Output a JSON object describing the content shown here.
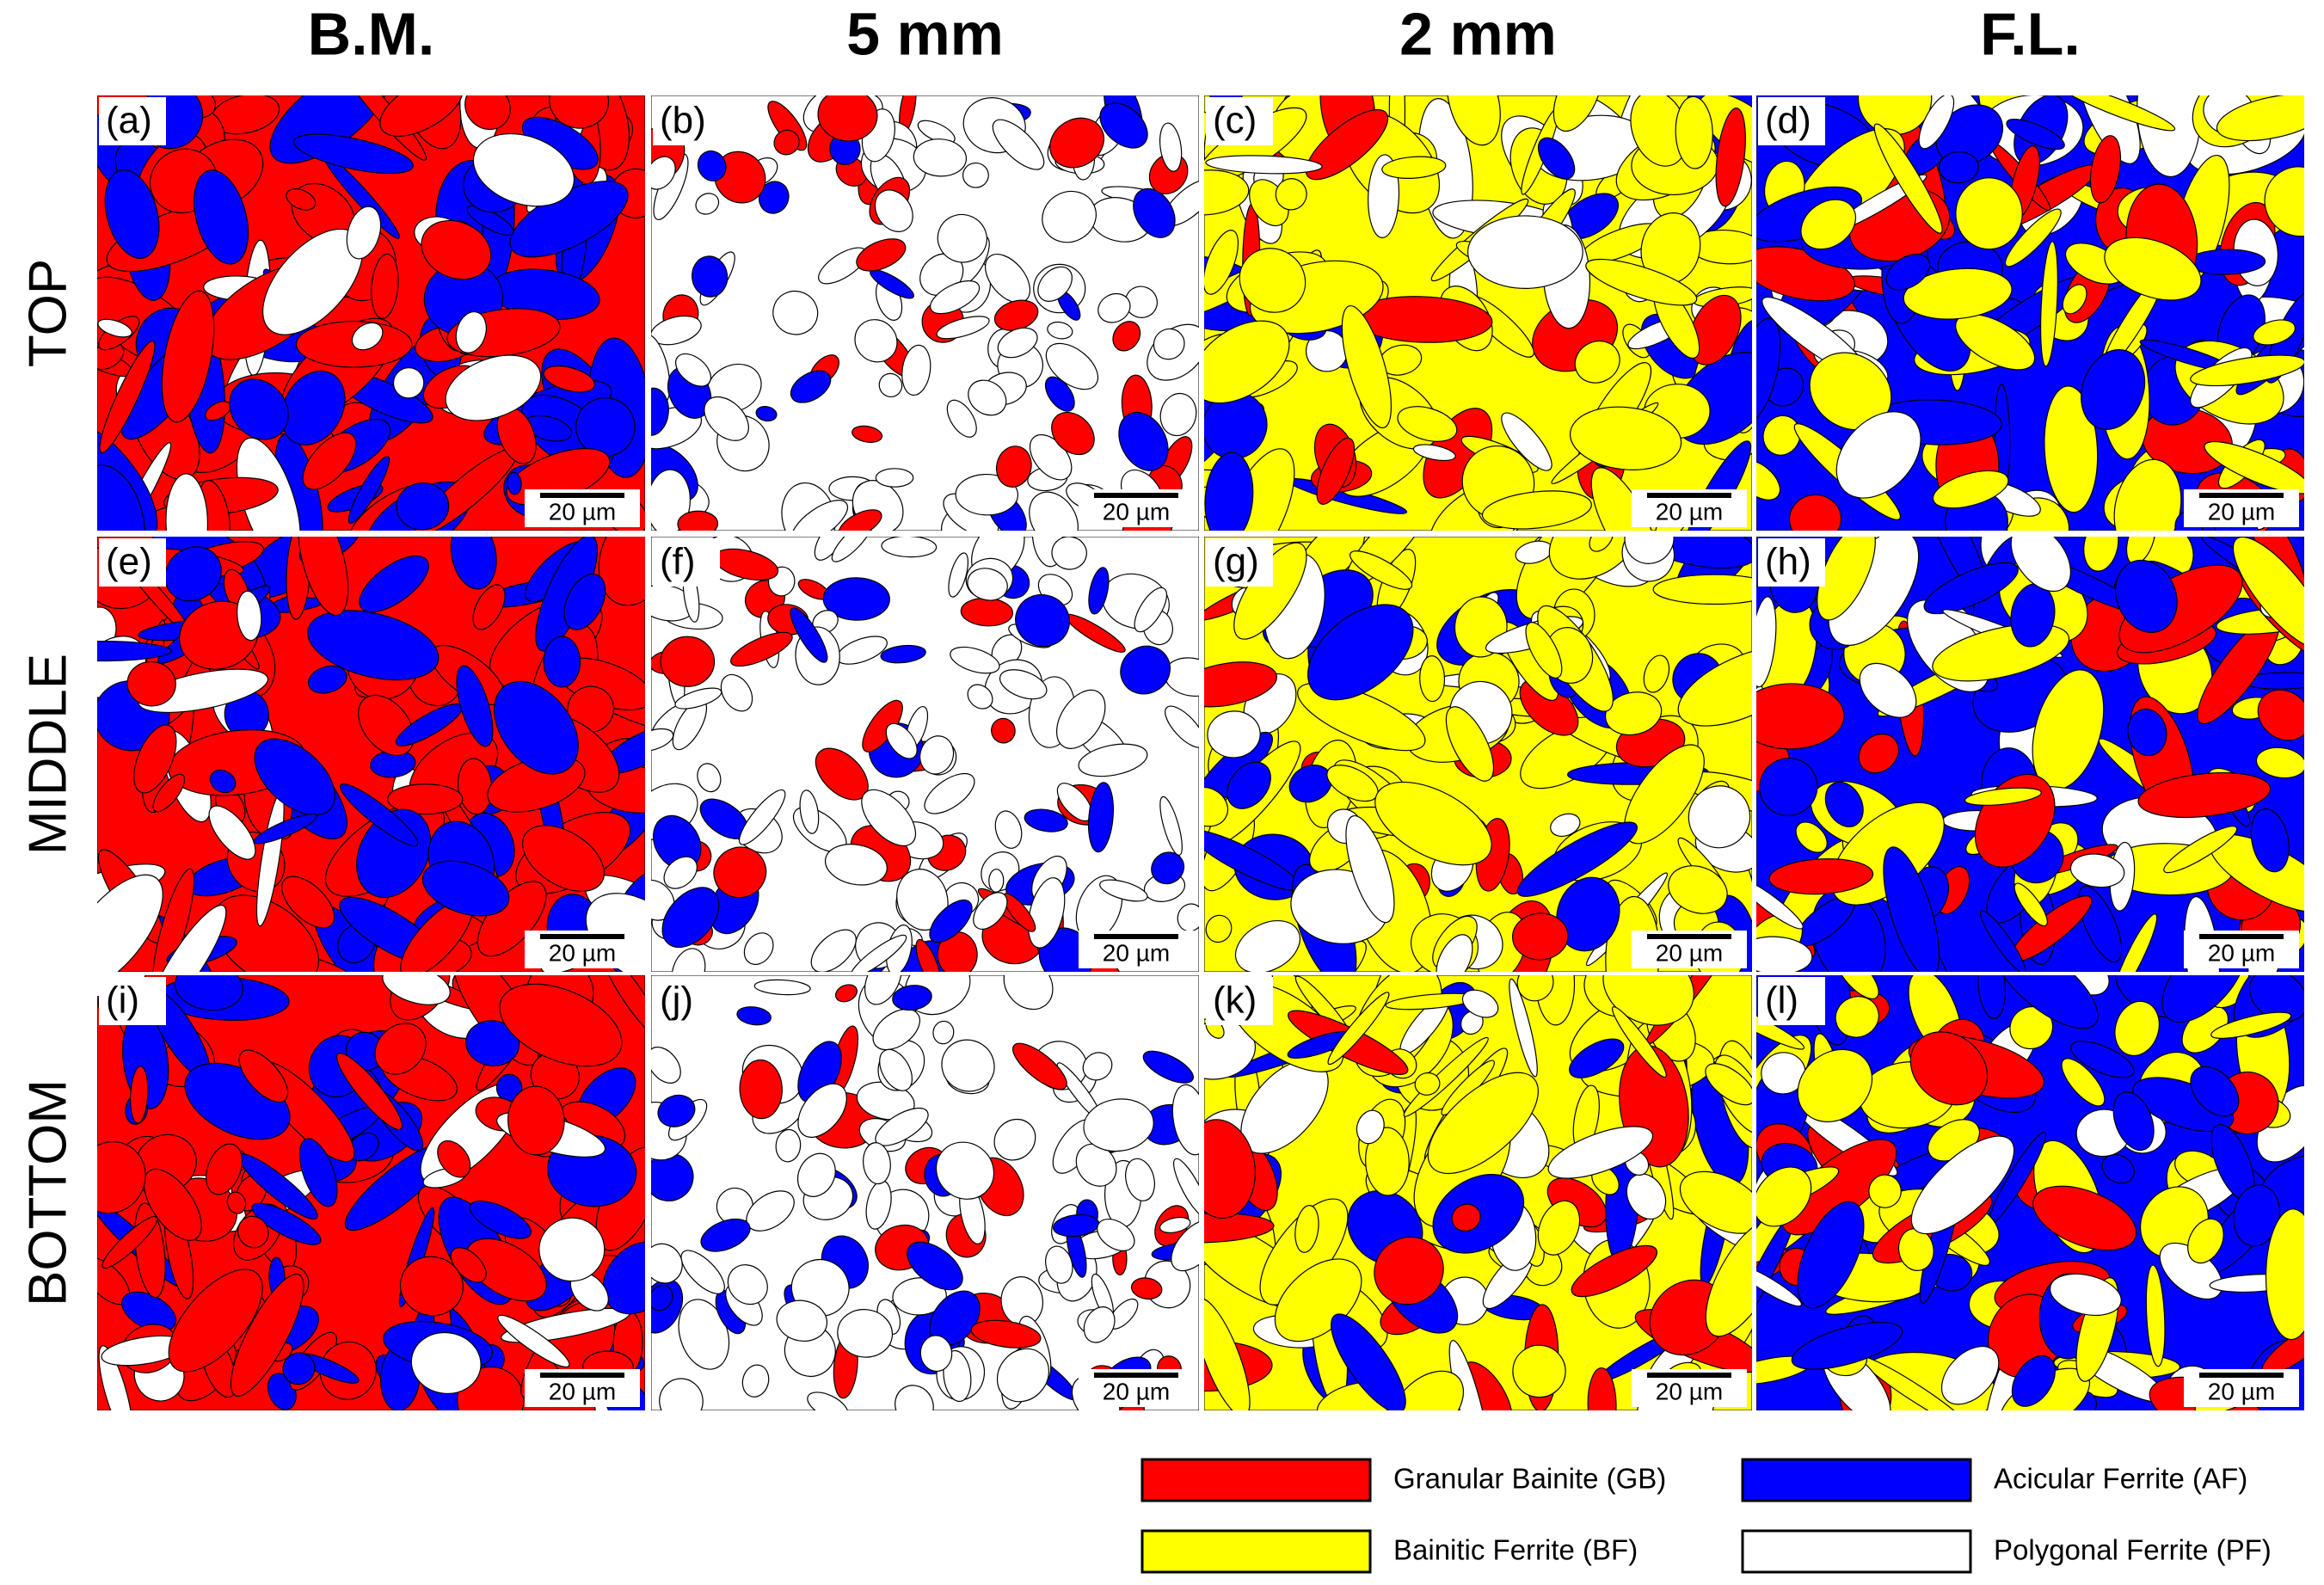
{
  "column_headers": [
    "B.M.",
    "5 mm",
    "2 mm",
    "F.L."
  ],
  "row_labels": [
    "TOP",
    "MIDDLE",
    "BOTTOM"
  ],
  "panels": [
    {
      "label": "(a)",
      "scale_bar": "20 µm"
    },
    {
      "label": "(b)",
      "scale_bar": "20 µm"
    },
    {
      "label": "(c)",
      "scale_bar": "20 µm"
    },
    {
      "label": "(d)",
      "scale_bar": "20 µm"
    },
    {
      "label": "(e)",
      "scale_bar": "20 µm"
    },
    {
      "label": "(f)",
      "scale_bar": "20 µm"
    },
    {
      "label": "(g)",
      "scale_bar": "20 µm"
    },
    {
      "label": "(h)",
      "scale_bar": "20 µm"
    },
    {
      "label": "(i)",
      "scale_bar": "20 µm"
    },
    {
      "label": "(j)",
      "scale_bar": "20 µm"
    },
    {
      "label": "(k)",
      "scale_bar": "20 µm"
    },
    {
      "label": "(l)",
      "scale_bar": "20 µm"
    }
  ],
  "legend": [
    {
      "label": "Granular Bainite (GB)",
      "color": "#ff0000"
    },
    {
      "label": "Acicular Ferrite (AF)",
      "color": "#0000ff"
    },
    {
      "label": "Bainitic Ferrite (BF)",
      "color": "#ffff00"
    },
    {
      "label": "Polygonal Ferrite (PF)",
      "color": "#ffffff"
    }
  ]
}
